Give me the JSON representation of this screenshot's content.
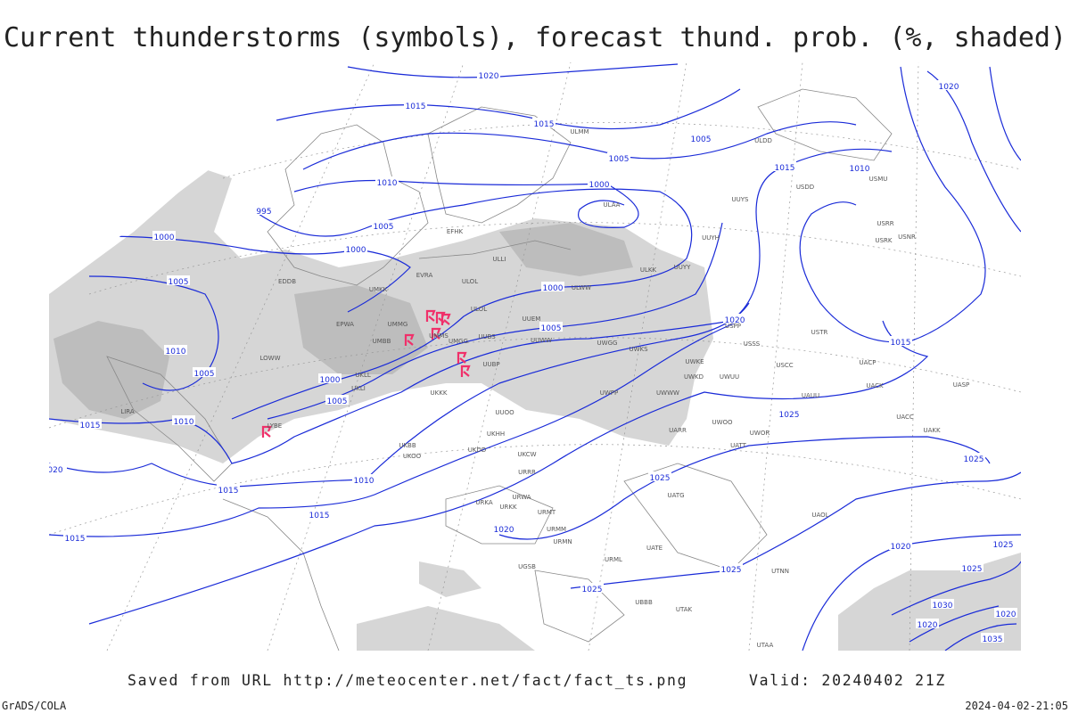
{
  "header": {
    "title": "Current thunderstorms (symbols), forecast thund. prob. (%, shaded)"
  },
  "isobar_labels": [
    "1020",
    "1015",
    "1015",
    "1005",
    "1005",
    "1010",
    "1000",
    "995",
    "1005",
    "1000",
    "1000",
    "1005",
    "1000",
    "1005",
    "1020",
    "1010",
    "1005",
    "1000",
    "1005",
    "1010",
    "1015",
    "1025",
    "1010",
    "1025",
    "1015",
    "1015",
    "1015",
    "1020",
    "1020",
    "1025",
    "1025",
    "1030",
    "1020",
    "1020",
    "1035",
    "1010",
    "1015",
    "1015",
    "1025",
    "1020",
    "1025",
    "1025",
    "020"
  ],
  "stations": [
    "ULAA",
    "EFHK",
    "ULLI",
    "EVRA",
    "ULOL",
    "UMKK",
    "EPWA",
    "UMMG",
    "UMMS",
    "UMBB",
    "ULOL",
    "UUEM",
    "UUWW",
    "UUBS",
    "UMGG",
    "UKLL",
    "UKLI",
    "UUBP",
    "UUOO",
    "UKKK",
    "UKHH",
    "UKDD",
    "UKOO",
    "UKCW",
    "URRR",
    "ULWW",
    "ULKK",
    "UUYY",
    "UUYH",
    "UUYS",
    "USSS",
    "USCC",
    "USTR",
    "USPP",
    "UWOO",
    "UWOR",
    "UATT",
    "UAUU",
    "UWKE",
    "UWKD",
    "UWUU",
    "UWPP",
    "UWWW",
    "UWGG",
    "UWKS",
    "UARR",
    "URWA",
    "URMT",
    "URMM",
    "URMN",
    "URML",
    "URKK",
    "URKA",
    "UGSB",
    "UBBB",
    "UTAK",
    "UTAA",
    "UTNN",
    "UAOL",
    "UATG",
    "UATE",
    "UACC",
    "UAKK",
    "UACK",
    "UACP",
    "UASP",
    "USRR",
    "USRK",
    "USNR",
    "USMU",
    "USDD",
    "ULDD",
    "ULMM",
    "LIRA",
    "LYBE",
    "LOWW",
    "EDDB",
    "UKBB"
  ],
  "footer": {
    "saved": "Saved from URL http://meteocenter.net/fact/fact_ts.png",
    "valid": "Valid: 20240402 21Z",
    "software": "GrADS/COLA",
    "timestamp": "2024-04-02-21:05"
  }
}
